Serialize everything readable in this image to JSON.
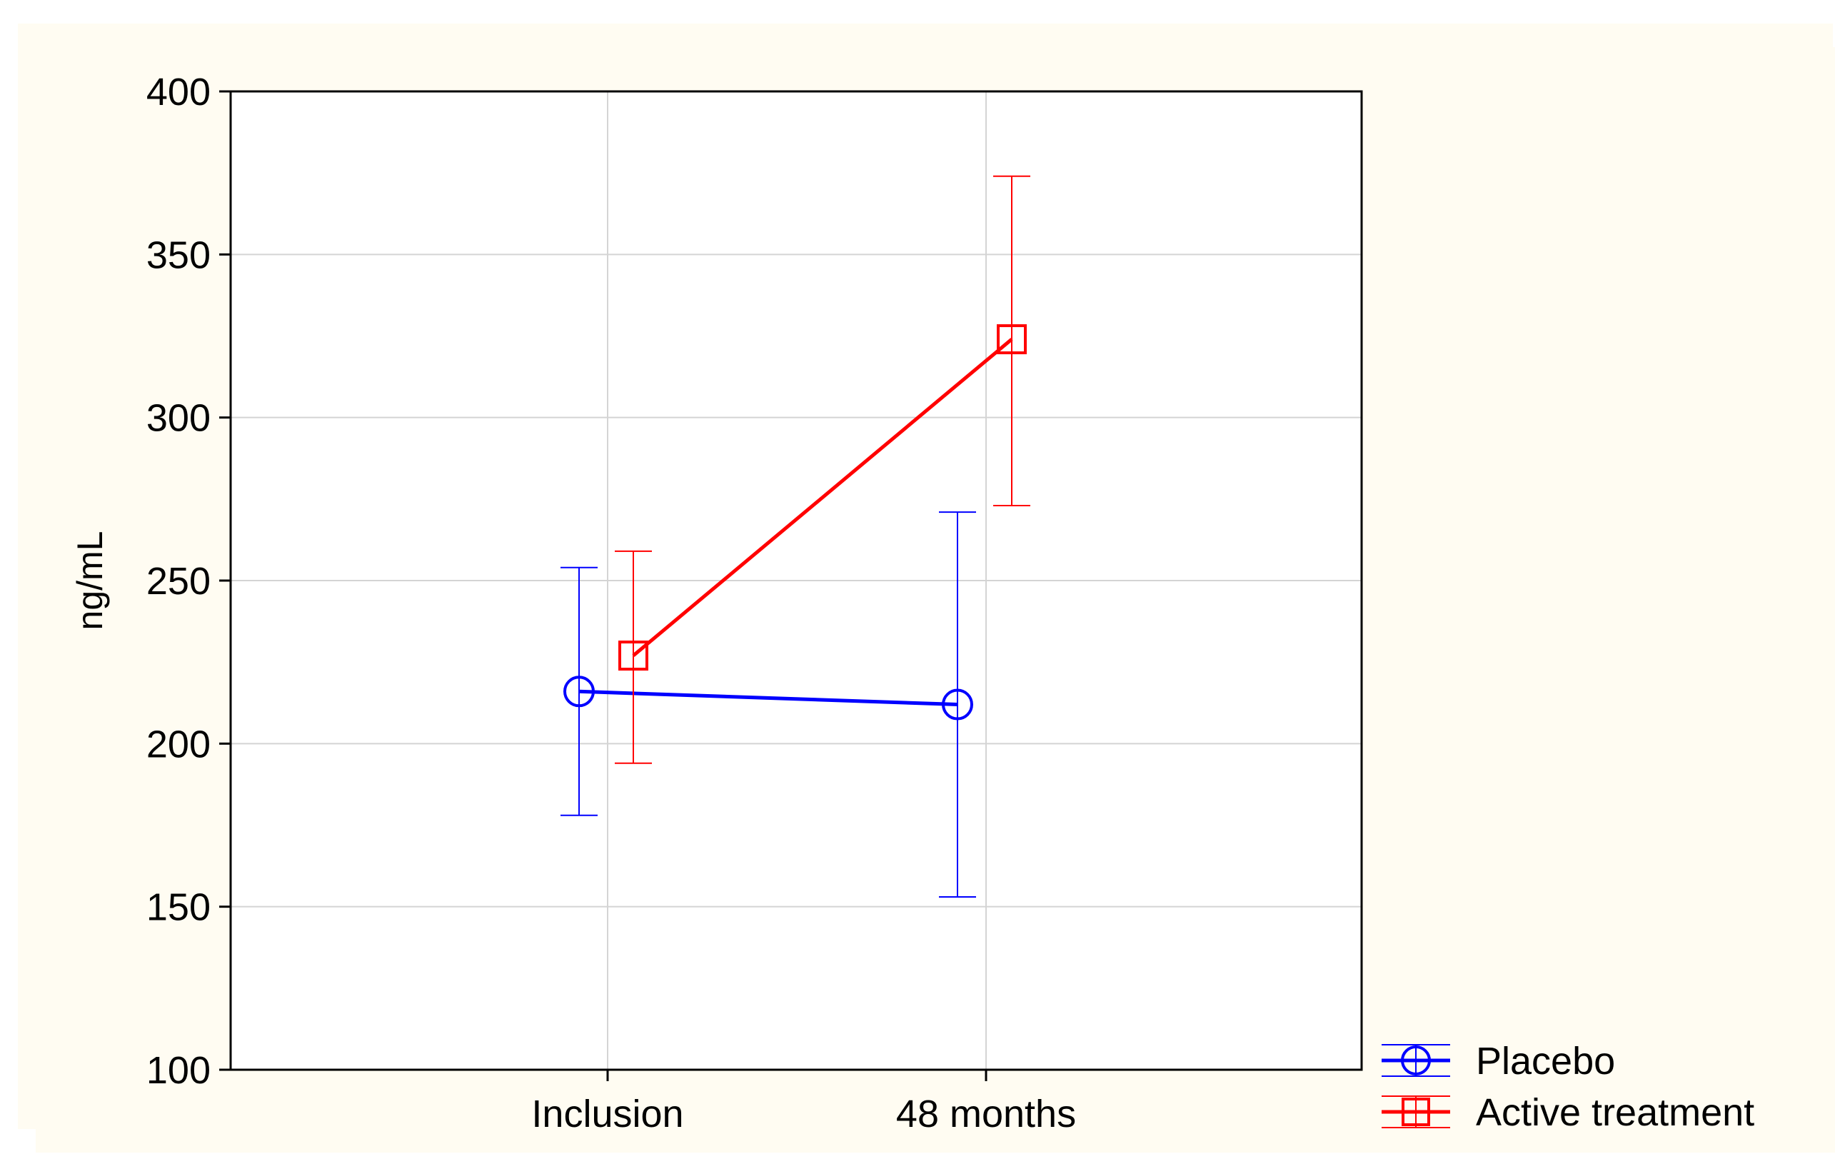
{
  "chart_data": {
    "type": "line",
    "ylabel": "ng/mL",
    "ylim": [
      100,
      400
    ],
    "yticks": [
      100,
      150,
      200,
      250,
      300,
      350,
      400
    ],
    "categories": [
      "Inclusion",
      "48 months"
    ],
    "grid": true,
    "legend_position": "bottom-right, outside plot",
    "series": [
      {
        "name": "Placebo",
        "color": "#0000ff",
        "marker": "circle",
        "values": [
          216,
          212
        ],
        "err_low": [
          178,
          153
        ],
        "err_high": [
          254,
          271
        ]
      },
      {
        "name": "Active treatment",
        "color": "#ff0000",
        "marker": "square",
        "values": [
          227,
          324
        ],
        "err_low": [
          194,
          273
        ],
        "err_high": [
          259,
          374
        ]
      }
    ]
  }
}
